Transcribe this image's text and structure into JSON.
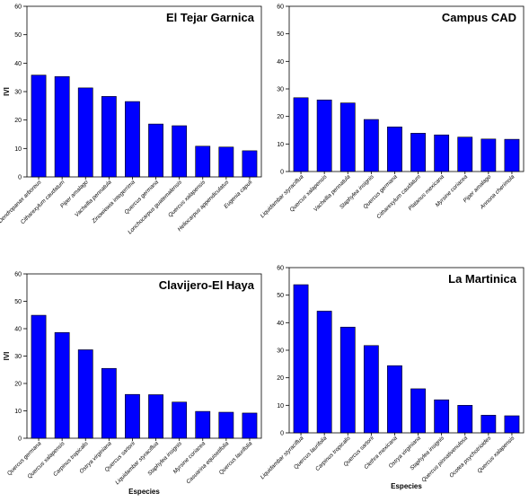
{
  "chart_data": [
    {
      "type": "bar",
      "title": "El Tejar Garnica",
      "ylabel": "IVI",
      "xlabel": "",
      "ylim": [
        0,
        60
      ],
      "yticks": [
        0,
        10,
        20,
        30,
        40,
        50,
        60
      ],
      "categories": [
        "Dendropanax arboreus",
        "Citharexylum caudatum",
        "Piper amalago",
        "Vachellia pennatula",
        "Zinowiewia integerrima",
        "Quercus germana",
        "Lonchocarpus guatemalensis",
        "Quercus xalapensis",
        "Heliocarpus appendiculatus",
        "Eugenia capuli"
      ],
      "values": [
        35.8,
        35.3,
        31.3,
        28.3,
        26.5,
        18.6,
        18.0,
        10.8,
        10.5,
        9.2
      ]
    },
    {
      "type": "bar",
      "title": "Campus CAD",
      "ylabel": "",
      "xlabel": "",
      "ylim": [
        0,
        60
      ],
      "yticks": [
        0,
        10,
        20,
        30,
        40,
        50,
        60
      ],
      "categories": [
        "Liquidambar styraciflua",
        "Quercus xalapensis",
        "Vachellia pennatula",
        "Staphylea insignis",
        "Quercus germana",
        "Citharexylum caudatum",
        "Platanus mexicana",
        "Myrsine coriacea",
        "Piper amalago",
        "Annona cherimola"
      ],
      "values": [
        26.8,
        26.0,
        24.9,
        18.9,
        16.2,
        13.9,
        13.3,
        12.5,
        11.8,
        11.7
      ]
    },
    {
      "type": "bar",
      "title": "Clavijero-El Haya",
      "ylabel": "IVI",
      "xlabel": "Especies",
      "ylim": [
        0,
        60
      ],
      "yticks": [
        0,
        10,
        20,
        30,
        40,
        50,
        60
      ],
      "categories": [
        "Quercus germana",
        "Quercus xalapensis",
        "Carpinus tropicalis",
        "Ostrya virginiana",
        "Quercus sartorii",
        "Liquidambar styraciflua",
        "Staphylea insignis",
        "Myrsine coriacea",
        "Casuarina equisetifolia",
        "Quercus laurifolia"
      ],
      "values": [
        44.9,
        38.6,
        32.3,
        25.5,
        16.0,
        15.9,
        13.2,
        9.8,
        9.5,
        9.2
      ]
    },
    {
      "type": "bar",
      "title": "La Martinica",
      "ylabel": "",
      "xlabel": "Especies",
      "ylim": [
        0,
        60
      ],
      "yticks": [
        0,
        10,
        20,
        30,
        40,
        50,
        60
      ],
      "categories": [
        "Liquidambar styraciflua",
        "Quercus laurifolia",
        "Carpinus tropicalis",
        "Quercus sartorii",
        "Clethra mexicana",
        "Ostrya virginiana",
        "Staphylea insignis",
        "Quercus pinnativenulosa",
        "Ocotea psychotrioides",
        "Quercus xalapensis"
      ],
      "values": [
        53.8,
        44.2,
        38.4,
        31.7,
        24.4,
        16.0,
        12.0,
        10.0,
        6.4,
        6.2
      ]
    }
  ],
  "colors": {
    "bar": "#0000ff",
    "bar_edge": "#000000"
  }
}
